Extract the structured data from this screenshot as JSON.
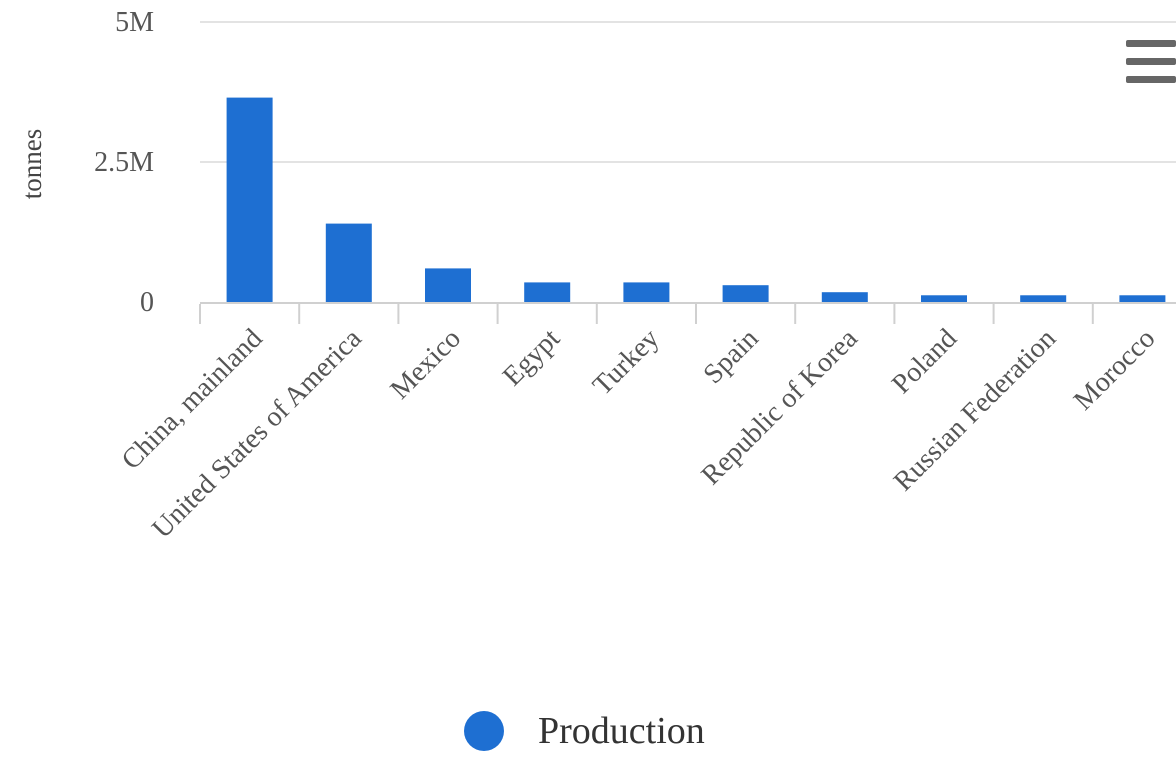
{
  "chart_data": {
    "type": "bar",
    "categories": [
      "China, mainland",
      "United States of America",
      "Mexico",
      "Egypt",
      "Turkey",
      "Spain",
      "Republic of Korea",
      "Poland",
      "Russian Federation",
      "Morocco"
    ],
    "series": [
      {
        "name": "Production",
        "values": [
          3650000,
          1400000,
          600000,
          350000,
          350000,
          300000,
          175000,
          120000,
          120000,
          120000
        ],
        "color": "#1e6fd2"
      }
    ],
    "ylabel": "tonnes",
    "ylim": [
      0,
      5000000
    ],
    "yticks": [
      {
        "value": 0,
        "label": "0"
      },
      {
        "value": 2500000,
        "label": "2.5M"
      },
      {
        "value": 5000000,
        "label": "5M"
      }
    ],
    "grid": true,
    "legend_position": "bottom-center"
  },
  "legend": {
    "label": "Production"
  },
  "menu": {
    "icon": "hamburger-menu-icon"
  }
}
